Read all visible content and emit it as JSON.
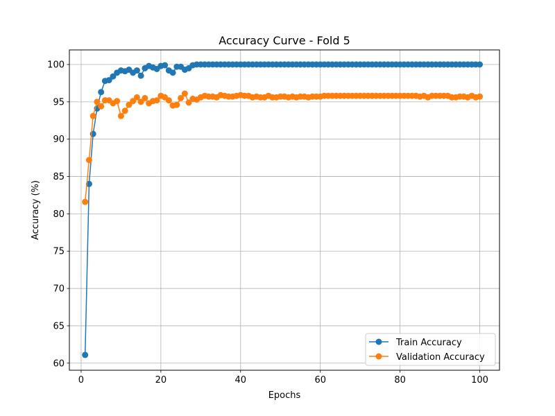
{
  "chart_data": {
    "type": "line",
    "title": "Accuracy Curve - Fold 5",
    "xlabel": "Epochs",
    "ylabel": "Accuracy (%)",
    "xlim": [
      -2.95,
      104.95
    ],
    "ylim": [
      59.05,
      101.95
    ],
    "xticks": [
      0,
      20,
      40,
      60,
      80,
      100
    ],
    "yticks": [
      60,
      65,
      70,
      75,
      80,
      85,
      90,
      95,
      100
    ],
    "grid": true,
    "legend_position": "lower-right",
    "series": [
      {
        "name": "Train Accuracy",
        "color": "#1f77b4",
        "marker": "circle",
        "values": [
          61.1,
          84.0,
          90.7,
          94.1,
          96.3,
          97.8,
          97.9,
          98.4,
          98.9,
          99.2,
          99.1,
          99.3,
          98.9,
          99.2,
          98.5,
          99.5,
          99.8,
          99.6,
          99.4,
          99.8,
          99.9,
          99.2,
          98.9,
          99.7,
          99.7,
          99.3,
          99.5,
          99.9,
          100.0,
          100.0,
          100.0,
          100.0,
          100.0,
          100.0,
          100.0,
          100.0,
          100.0,
          100.0,
          100.0,
          100.0,
          100.0,
          100.0,
          100.0,
          100.0,
          100.0,
          100.0,
          100.0,
          100.0,
          100.0,
          100.0,
          100.0,
          100.0,
          100.0,
          100.0,
          100.0,
          100.0,
          100.0,
          100.0,
          100.0,
          100.0,
          100.0,
          100.0,
          100.0,
          100.0,
          100.0,
          100.0,
          100.0,
          100.0,
          100.0,
          100.0,
          100.0,
          100.0,
          100.0,
          100.0,
          100.0,
          100.0,
          100.0,
          100.0,
          100.0,
          100.0,
          100.0,
          100.0,
          100.0,
          100.0,
          100.0,
          100.0,
          100.0,
          100.0,
          100.0,
          100.0,
          100.0,
          100.0,
          100.0,
          100.0,
          100.0,
          100.0,
          100.0,
          100.0,
          100.0,
          100.0
        ]
      },
      {
        "name": "Validation Accuracy",
        "color": "#ff7f0e",
        "marker": "circle",
        "values": [
          81.6,
          87.2,
          93.1,
          95.0,
          94.4,
          95.2,
          95.2,
          94.8,
          95.1,
          93.1,
          93.8,
          94.6,
          95.1,
          95.6,
          95.0,
          95.5,
          94.8,
          95.1,
          95.2,
          95.8,
          95.6,
          95.2,
          94.5,
          94.6,
          95.5,
          96.1,
          94.9,
          95.4,
          95.3,
          95.6,
          95.8,
          95.7,
          95.7,
          95.6,
          95.9,
          95.8,
          95.7,
          95.7,
          95.8,
          95.9,
          95.8,
          95.8,
          95.6,
          95.7,
          95.6,
          95.6,
          95.8,
          95.6,
          95.6,
          95.7,
          95.7,
          95.6,
          95.7,
          95.6,
          95.7,
          95.7,
          95.6,
          95.7,
          95.7,
          95.7,
          95.8,
          95.8,
          95.8,
          95.8,
          95.8,
          95.8,
          95.8,
          95.8,
          95.8,
          95.8,
          95.8,
          95.8,
          95.8,
          95.8,
          95.8,
          95.8,
          95.8,
          95.8,
          95.8,
          95.8,
          95.8,
          95.8,
          95.8,
          95.8,
          95.7,
          95.8,
          95.6,
          95.8,
          95.8,
          95.8,
          95.8,
          95.8,
          95.6,
          95.6,
          95.7,
          95.7,
          95.6,
          95.8,
          95.6,
          95.7
        ]
      }
    ]
  }
}
